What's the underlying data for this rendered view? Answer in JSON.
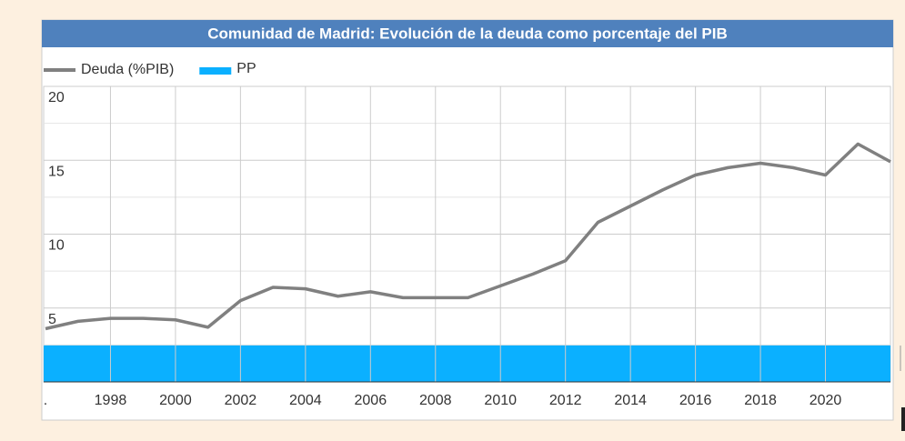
{
  "chart_data": {
    "type": "line",
    "title": "Comunidad de Madrid: Evolución de la deuda como porcentaje del PIB",
    "x": [
      1996,
      1997,
      1998,
      1999,
      2000,
      2001,
      2002,
      2003,
      2004,
      2005,
      2006,
      2007,
      2008,
      2009,
      2010,
      2011,
      2012,
      2013,
      2014,
      2015,
      2016,
      2017,
      2018,
      2019,
      2020,
      2021,
      2022
    ],
    "series": [
      {
        "name": "Deuda (%PIB)",
        "color": "#808080",
        "values": [
          3.6,
          4.1,
          4.3,
          4.3,
          4.2,
          3.7,
          5.5,
          6.4,
          6.3,
          5.8,
          6.1,
          5.7,
          5.7,
          5.7,
          6.5,
          7.3,
          8.2,
          10.8,
          11.9,
          13.0,
          14.0,
          14.5,
          14.8,
          14.5,
          14.0,
          16.1,
          14.9
        ]
      }
    ],
    "bands": [
      {
        "name": "PP",
        "color": "#0bb0ff",
        "x": [
          1996,
          2022
        ],
        "y": [
          0,
          2.5
        ]
      }
    ],
    "xlim": [
      1996,
      2022
    ],
    "xticks": [
      {
        "value": 1996,
        "label": "."
      },
      1998,
      2000,
      2002,
      2004,
      2006,
      2008,
      2010,
      2012,
      2014,
      2016,
      2018,
      2020
    ],
    "ylim": [
      0,
      20
    ],
    "yticks": [
      5,
      10,
      15,
      20
    ],
    "minor_yticks": [
      2.5,
      7.5,
      12.5,
      17.5
    ],
    "grid": true,
    "legend": "top-left"
  }
}
